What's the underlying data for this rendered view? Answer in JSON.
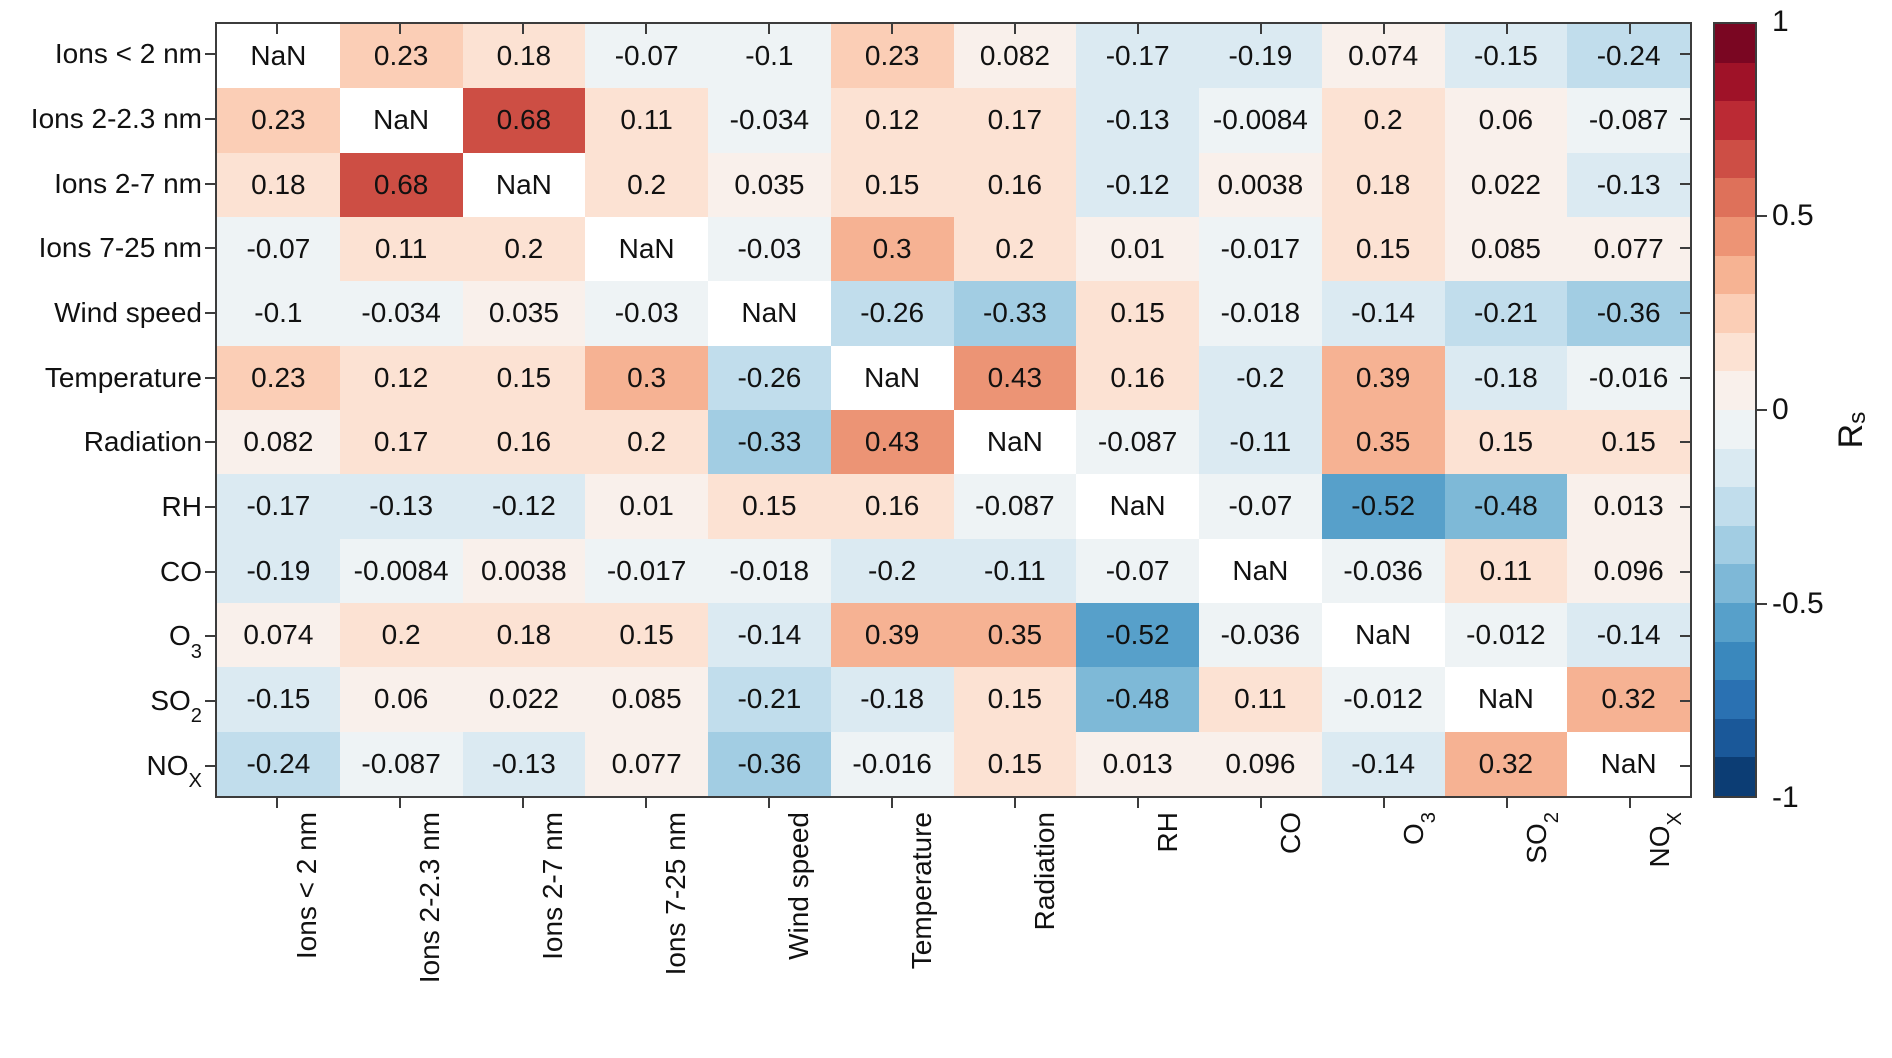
{
  "chart_data": {
    "type": "heatmap",
    "title": "",
    "legend_position": "right",
    "grid": false,
    "nan_label": "NaN",
    "nan_color": "#ffffff",
    "value_range": [
      -1,
      1
    ],
    "n_color_bands": 20,
    "colormap_anchors": [
      {
        "v": -1.0,
        "c": "#053061"
      },
      {
        "v": -0.8,
        "c": "#2166ac"
      },
      {
        "v": -0.6,
        "c": "#4393c3"
      },
      {
        "v": -0.4,
        "c": "#92c5de"
      },
      {
        "v": -0.2,
        "c": "#d1e5f0"
      },
      {
        "v": 0.0,
        "c": "#f7f7f7"
      },
      {
        "v": 0.2,
        "c": "#fddbc7"
      },
      {
        "v": 0.4,
        "c": "#f4a582"
      },
      {
        "v": 0.6,
        "c": "#d6604d"
      },
      {
        "v": 0.8,
        "c": "#b2182b"
      },
      {
        "v": 1.0,
        "c": "#67001f"
      }
    ],
    "variables": [
      {
        "parts": [
          {
            "t": "Ions < 2 nm"
          }
        ]
      },
      {
        "parts": [
          {
            "t": "Ions 2-2.3 nm"
          }
        ]
      },
      {
        "parts": [
          {
            "t": "Ions 2-7 nm"
          }
        ]
      },
      {
        "parts": [
          {
            "t": "Ions 7-25 nm"
          }
        ]
      },
      {
        "parts": [
          {
            "t": "Wind speed"
          }
        ]
      },
      {
        "parts": [
          {
            "t": "Temperature"
          }
        ]
      },
      {
        "parts": [
          {
            "t": "Radiation"
          }
        ]
      },
      {
        "parts": [
          {
            "t": "RH"
          }
        ]
      },
      {
        "parts": [
          {
            "t": "CO"
          }
        ]
      },
      {
        "parts": [
          {
            "t": "O"
          },
          {
            "t": "3",
            "sub": true
          }
        ]
      },
      {
        "parts": [
          {
            "t": "SO"
          },
          {
            "t": "2",
            "sub": true
          }
        ]
      },
      {
        "parts": [
          {
            "t": "NO"
          },
          {
            "t": "X",
            "sub": true
          }
        ]
      }
    ],
    "matrix": [
      [
        null,
        0.23,
        0.18,
        -0.07,
        -0.1,
        0.23,
        0.082,
        -0.17,
        -0.19,
        0.074,
        -0.15,
        -0.24
      ],
      [
        0.23,
        null,
        0.68,
        0.11,
        -0.034,
        0.12,
        0.17,
        -0.13,
        -0.0084,
        0.2,
        0.06,
        -0.087
      ],
      [
        0.18,
        0.68,
        null,
        0.2,
        0.035,
        0.15,
        0.16,
        -0.12,
        0.0038,
        0.18,
        0.022,
        -0.13
      ],
      [
        -0.07,
        0.11,
        0.2,
        null,
        -0.03,
        0.3,
        0.2,
        0.01,
        -0.017,
        0.15,
        0.085,
        0.077
      ],
      [
        -0.1,
        -0.034,
        0.035,
        -0.03,
        null,
        -0.26,
        -0.33,
        0.15,
        -0.018,
        -0.14,
        -0.21,
        -0.36
      ],
      [
        0.23,
        0.12,
        0.15,
        0.3,
        -0.26,
        null,
        0.43,
        0.16,
        -0.2,
        0.39,
        -0.18,
        -0.016
      ],
      [
        0.082,
        0.17,
        0.16,
        0.2,
        -0.33,
        0.43,
        null,
        -0.087,
        -0.11,
        0.35,
        0.15,
        0.15
      ],
      [
        -0.17,
        -0.13,
        -0.12,
        0.01,
        0.15,
        0.16,
        -0.087,
        null,
        -0.07,
        -0.52,
        -0.48,
        0.013
      ],
      [
        -0.19,
        -0.0084,
        0.0038,
        -0.017,
        -0.018,
        -0.2,
        -0.11,
        -0.07,
        null,
        -0.036,
        0.11,
        0.096
      ],
      [
        0.074,
        0.2,
        0.18,
        0.15,
        -0.14,
        0.39,
        0.35,
        -0.52,
        -0.036,
        null,
        -0.012,
        -0.14
      ],
      [
        -0.15,
        0.06,
        0.022,
        0.085,
        -0.21,
        -0.18,
        0.15,
        -0.48,
        0.11,
        -0.012,
        null,
        0.32
      ],
      [
        -0.24,
        -0.087,
        -0.13,
        0.077,
        -0.36,
        -0.016,
        0.15,
        0.013,
        0.096,
        -0.14,
        0.32,
        null
      ]
    ],
    "colorbar": {
      "axis_label": {
        "parts": [
          {
            "t": "R"
          },
          {
            "t": "s",
            "sub": true
          }
        ]
      },
      "ticks": [
        {
          "value": 1,
          "label": "1"
        },
        {
          "value": 0.5,
          "label": "0.5"
        },
        {
          "value": 0,
          "label": "0"
        },
        {
          "value": -0.5,
          "label": "-0.5"
        },
        {
          "value": -1,
          "label": "-1"
        }
      ]
    }
  }
}
